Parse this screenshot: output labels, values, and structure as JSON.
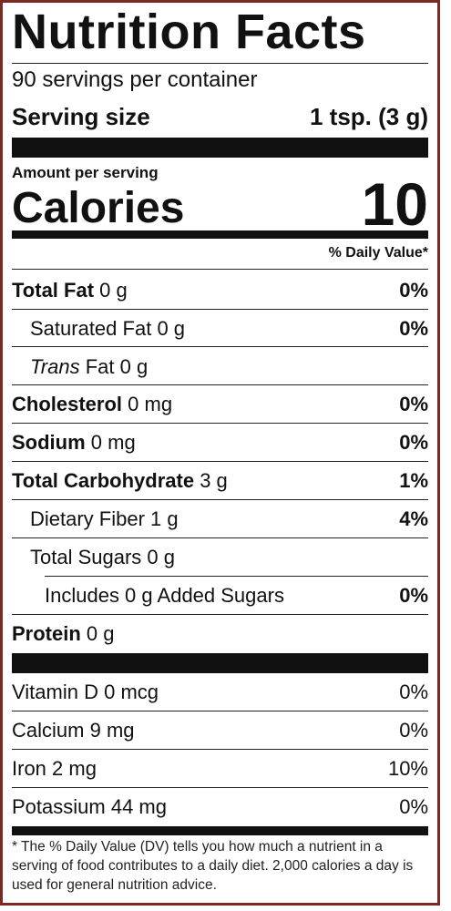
{
  "title": "Nutrition Facts",
  "servings_per_container": "90 servings per container",
  "serving_size": {
    "label": "Serving size",
    "value": "1 tsp. (3 g)"
  },
  "amount_per_serving": "Amount per serving",
  "calories": {
    "label": "Calories",
    "value": "10"
  },
  "daily_value_header": "% Daily Value*",
  "nutrients": [
    {
      "name": "Total Fat",
      "amount": "0 g",
      "dv": "0%"
    },
    {
      "name": "Saturated Fat",
      "amount": "0 g",
      "dv": "0%"
    },
    {
      "name": "Trans",
      "name_suffix": "Fat",
      "amount": "0 g",
      "dv": ""
    },
    {
      "name": "Cholesterol",
      "amount": "0 mg",
      "dv": "0%"
    },
    {
      "name": "Sodium",
      "amount": "0 mg",
      "dv": "0%"
    },
    {
      "name": "Total Carbohydrate",
      "amount": "3 g",
      "dv": "1%"
    },
    {
      "name": "Dietary Fiber",
      "amount": "1 g",
      "dv": "4%"
    },
    {
      "name": "Total Sugars",
      "amount": "0 g",
      "dv": ""
    },
    {
      "name": "Includes 0 g Added Sugars",
      "amount": "",
      "dv": "0%"
    },
    {
      "name": "Protein",
      "amount": "0 g",
      "dv": ""
    }
  ],
  "vitamins": [
    {
      "name": "Vitamin D",
      "amount": "0 mcg",
      "dv": "0%"
    },
    {
      "name": "Calcium",
      "amount": "9 mg",
      "dv": "0%"
    },
    {
      "name": "Iron",
      "amount": "2 mg",
      "dv": "10%"
    },
    {
      "name": "Potassium",
      "amount": "44 mg",
      "dv": "0%"
    }
  ],
  "footnote": "* The % Daily Value (DV) tells you how much a nutrient in a serving of food contributes to a daily diet. 2,000 calories a day is used for general nutrition advice."
}
